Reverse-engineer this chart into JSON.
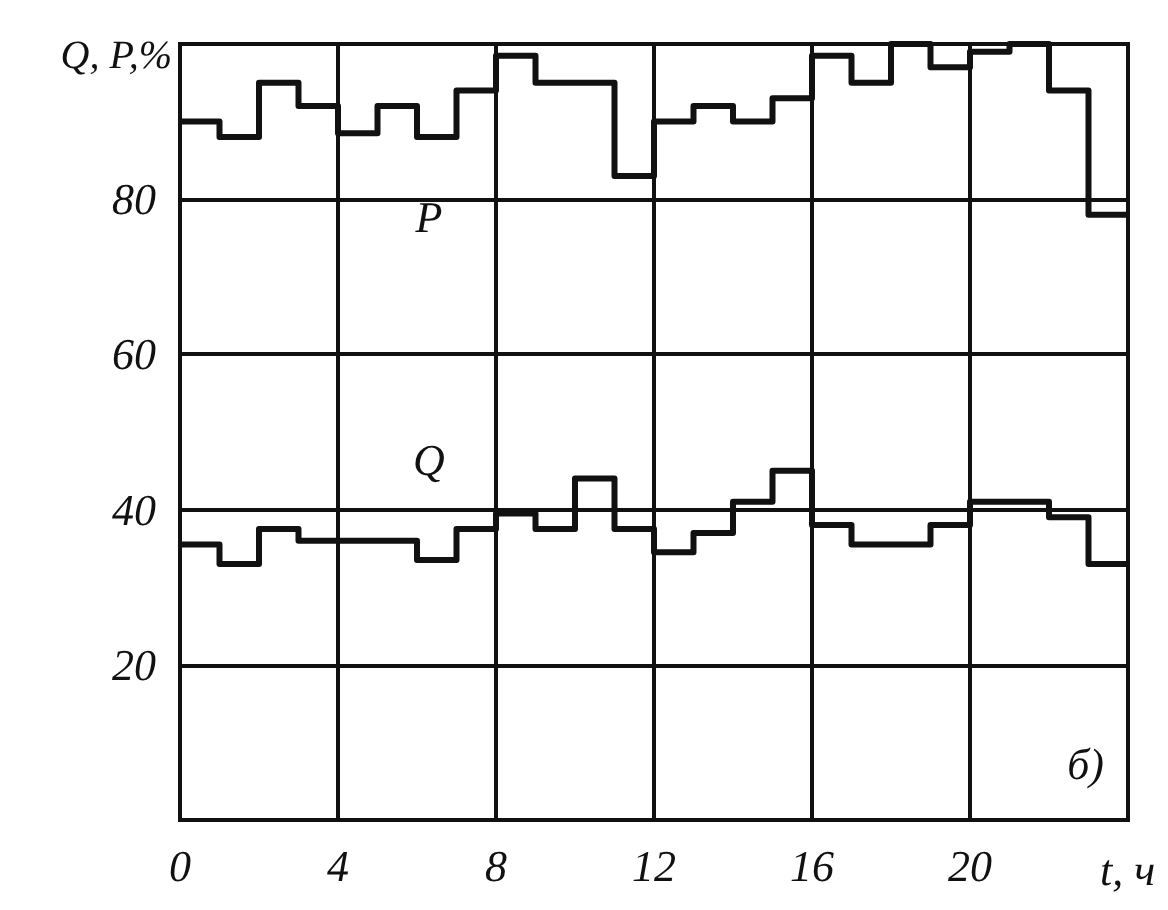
{
  "chart_data": {
    "type": "step",
    "ylabel": "Q, P,%",
    "xlabel": "t, ч",
    "annotations": [
      "б)"
    ],
    "x": [
      0,
      1,
      2,
      3,
      4,
      5,
      6,
      7,
      8,
      9,
      10,
      11,
      12,
      13,
      14,
      15,
      16,
      17,
      18,
      19,
      20,
      21,
      22,
      23,
      24
    ],
    "series": [
      {
        "name": "P",
        "color": "#111111",
        "values": [
          90,
          88,
          95,
          92,
          88.5,
          92,
          88,
          94,
          98.5,
          95,
          95,
          83,
          90,
          92,
          90,
          93,
          98.5,
          95,
          100,
          97,
          99,
          100,
          94,
          78,
          78
        ]
      },
      {
        "name": "Q",
        "color": "#111111",
        "values": [
          35.5,
          33,
          37.5,
          36,
          36,
          36,
          33.5,
          37.5,
          39.5,
          37.5,
          44,
          37.5,
          34.5,
          37,
          41,
          45,
          38,
          35.5,
          35.5,
          38,
          41,
          41,
          39,
          33,
          33
        ]
      }
    ],
    "xlim": [
      0,
      24
    ],
    "xticks": [
      0,
      4,
      8,
      12,
      16,
      20
    ],
    "ylim": [
      0,
      100
    ],
    "yticks": [
      20,
      40,
      60,
      80
    ],
    "grid": true,
    "legend": false,
    "marker": "none",
    "line_style": "solid"
  }
}
